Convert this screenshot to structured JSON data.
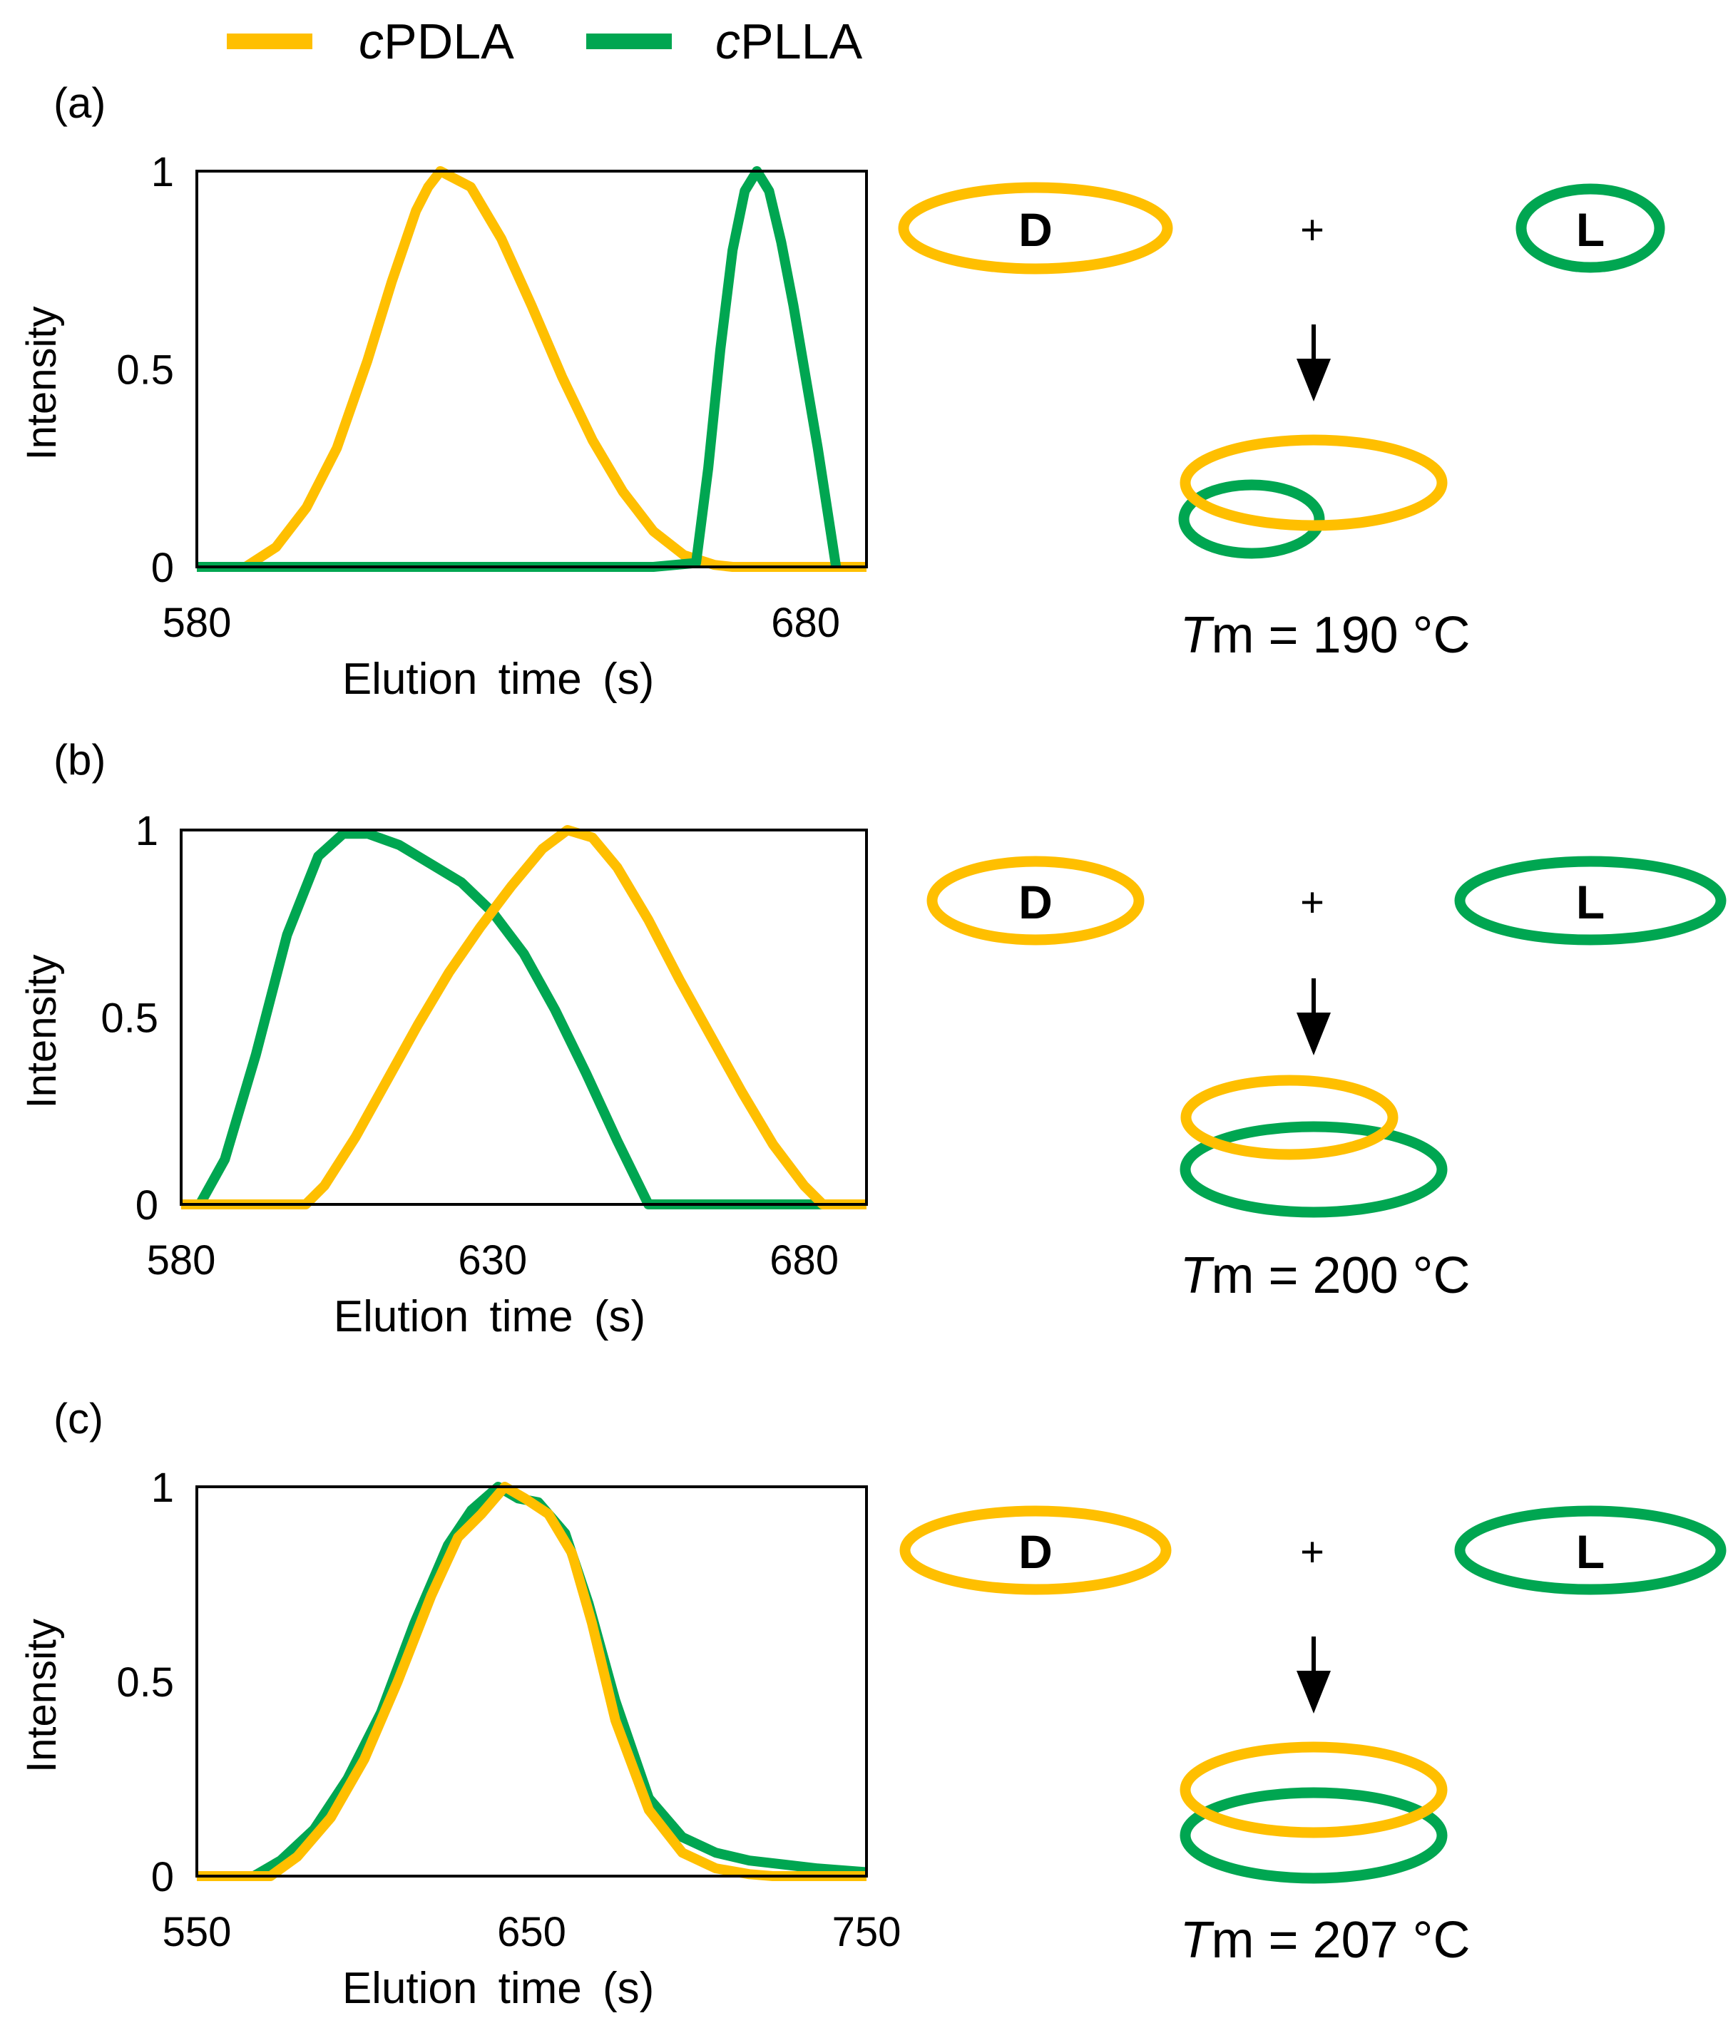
{
  "colors": {
    "cPDLA": "#FFBF00",
    "cPLLA": "#00A651",
    "frame": "#000000"
  },
  "legend": [
    {
      "prefix": "c",
      "name": "PDLA",
      "color": "#FFBF00"
    },
    {
      "prefix": "c",
      "name": "PLLA",
      "color": "#00A651"
    }
  ],
  "panels": [
    {
      "label": "(a)",
      "schematic": {
        "d_label": "D",
        "l_label": "L",
        "plus": "+",
        "tm_symbol": "T",
        "tm_rest": "m = 190 °C"
      }
    },
    {
      "label": "(b)",
      "schematic": {
        "d_label": "D",
        "l_label": "L",
        "plus": "+",
        "tm_symbol": "T",
        "tm_rest": "m = 200 °C"
      }
    },
    {
      "label": "(c)",
      "schematic": {
        "d_label": "D",
        "l_label": "L",
        "plus": "+",
        "tm_symbol": "T",
        "tm_rest": "m = 207 °C"
      }
    }
  ],
  "chart_data": [
    {
      "type": "line",
      "xlabel": "Elution time (s)",
      "ylabel": "Intensity",
      "xlim": [
        580,
        690
      ],
      "ylim": [
        0,
        1
      ],
      "xticks": [
        580,
        680
      ],
      "xtick_labels": [
        "580",
        "680"
      ],
      "yticks": [
        0,
        0.5,
        1
      ],
      "ytick_labels": [
        "0",
        "0.5",
        "1"
      ],
      "series": [
        {
          "name": "cPDLA",
          "x": [
            580,
            588,
            593,
            598,
            603,
            608,
            612,
            616,
            618,
            620,
            625,
            630,
            635,
            640,
            645,
            650,
            655,
            660,
            665,
            668,
            670,
            690
          ],
          "y": [
            0,
            0,
            0.05,
            0.15,
            0.3,
            0.52,
            0.72,
            0.9,
            0.96,
            1.0,
            0.96,
            0.83,
            0.66,
            0.48,
            0.32,
            0.19,
            0.09,
            0.03,
            0.005,
            0,
            0,
            0
          ]
        },
        {
          "name": "cPLLA",
          "x": [
            580,
            655,
            662,
            664,
            666,
            668,
            670,
            672,
            674,
            676,
            678,
            680,
            682,
            684,
            685
          ],
          "y": [
            0,
            0,
            0.01,
            0.25,
            0.55,
            0.8,
            0.95,
            1.0,
            0.95,
            0.82,
            0.66,
            0.48,
            0.3,
            0.1,
            0
          ]
        }
      ]
    },
    {
      "type": "line",
      "xlabel": "Elution time (s)",
      "ylabel": "Intensity",
      "xlim": [
        580,
        690
      ],
      "ylim": [
        0,
        1
      ],
      "xticks": [
        580,
        630,
        680
      ],
      "xtick_labels": [
        "580",
        "630",
        "680"
      ],
      "yticks": [
        0,
        0.5,
        1
      ],
      "ytick_labels": [
        "0",
        "0.5",
        "1"
      ],
      "series": [
        {
          "name": "cPLLA",
          "x": [
            580,
            583,
            587,
            592,
            597,
            602,
            606,
            610,
            615,
            620,
            625,
            630,
            635,
            640,
            645,
            650,
            655,
            690
          ],
          "y": [
            0,
            0,
            0.12,
            0.4,
            0.72,
            0.93,
            0.99,
            0.99,
            0.96,
            0.91,
            0.86,
            0.78,
            0.67,
            0.52,
            0.35,
            0.17,
            0,
            0
          ]
        },
        {
          "name": "cPDLA",
          "x": [
            580,
            600,
            603,
            608,
            613,
            618,
            623,
            628,
            633,
            638,
            642,
            646,
            650,
            655,
            660,
            665,
            670,
            675,
            680,
            683,
            690
          ],
          "y": [
            0,
            0,
            0.05,
            0.18,
            0.33,
            0.48,
            0.62,
            0.74,
            0.85,
            0.95,
            1.0,
            0.98,
            0.9,
            0.76,
            0.6,
            0.45,
            0.3,
            0.16,
            0.05,
            0,
            0
          ]
        }
      ]
    },
    {
      "type": "line",
      "xlabel": "Elution time (s)",
      "ylabel": "Intensity",
      "xlim": [
        550,
        750
      ],
      "ylim": [
        0,
        1
      ],
      "xticks": [
        550,
        650,
        750
      ],
      "xtick_labels": [
        "550",
        "650",
        "750"
      ],
      "yticks": [
        0,
        0.5,
        1
      ],
      "ytick_labels": [
        "0",
        "0.5",
        "1"
      ],
      "series": [
        {
          "name": "cPLLA",
          "x": [
            550,
            567,
            575,
            585,
            595,
            605,
            615,
            625,
            632,
            640,
            646,
            652,
            660,
            667,
            675,
            685,
            695,
            705,
            715,
            725,
            735,
            750
          ],
          "y": [
            0,
            0,
            0.04,
            0.12,
            0.25,
            0.42,
            0.65,
            0.85,
            0.94,
            1.0,
            0.97,
            0.96,
            0.88,
            0.7,
            0.45,
            0.2,
            0.1,
            0.06,
            0.04,
            0.03,
            0.02,
            0.01
          ]
        },
        {
          "name": "cPDLA",
          "x": [
            550,
            572,
            580,
            590,
            600,
            610,
            620,
            628,
            635,
            642,
            648,
            655,
            662,
            668,
            675,
            685,
            695,
            705,
            715,
            722,
            750
          ],
          "y": [
            0,
            0,
            0.05,
            0.15,
            0.3,
            0.5,
            0.72,
            0.87,
            0.93,
            1.0,
            0.97,
            0.93,
            0.83,
            0.65,
            0.4,
            0.17,
            0.06,
            0.02,
            0.005,
            0,
            0
          ]
        }
      ]
    }
  ]
}
